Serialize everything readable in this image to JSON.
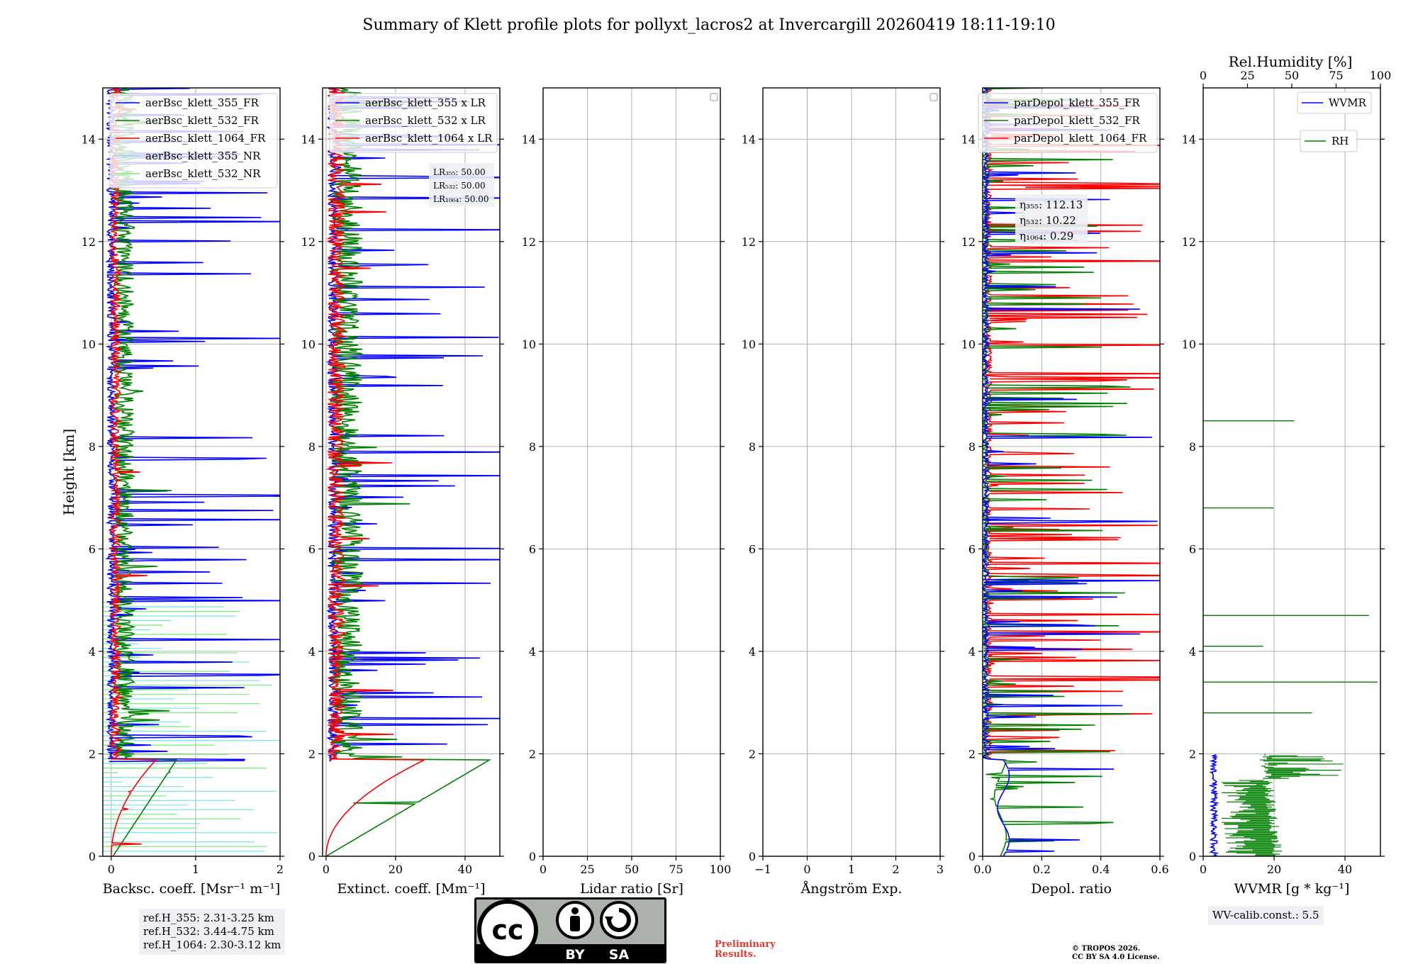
{
  "title": "Summary of Klett profile plots for pollyxt_lacros2 at Invercargill 20260419 18:11-19:10",
  "colors": {
    "c355": "#0000ff",
    "c532": "#008000",
    "c1064": "#ff0000",
    "c355nr": "#7fe6e6",
    "c532nr": "#7fee7f",
    "grid": "#b0b0b0"
  },
  "chart_data": [
    {
      "type": "line",
      "name": "backscatter",
      "xlabel": "Backsc. coeff. [Msr⁻¹ m⁻¹]",
      "ylabel": "Height [km]",
      "xlim": [
        -0.1,
        2
      ],
      "ylim": [
        0,
        15
      ],
      "xticks": [
        "0",
        "1",
        "2"
      ],
      "xtick_values": [
        0,
        1,
        2
      ],
      "yticks": [
        "0",
        "2",
        "4",
        "6",
        "8",
        "10",
        "12",
        "14"
      ],
      "legend": [
        "aerBsc_klett_355_FR",
        "aerBsc_klett_532_FR",
        "aerBsc_klett_1064_FR",
        "aerBsc_klett_355_NR",
        "aerBsc_klett_532_NR"
      ],
      "legend_position": "upper-right"
    },
    {
      "type": "line",
      "name": "extinction",
      "xlabel": "Extinct. coeff. [Mm⁻¹]",
      "xlim": [
        -1,
        50
      ],
      "ylim": [
        0,
        15
      ],
      "xticks": [
        "0",
        "20",
        "40"
      ],
      "xtick_values": [
        0,
        20,
        40
      ],
      "yticks": [
        "0",
        "2",
        "4",
        "6",
        "8",
        "10",
        "12",
        "14"
      ],
      "legend": [
        "aerBsc_klett_355 x LR",
        "aerBsc_klett_532 x LR",
        "aerBsc_klett_1064 x LR"
      ],
      "legend_position": "upper-right",
      "annotation": {
        "lines": [
          "LR₃₅₅: 50.00",
          "LR₅₃₂: 50.00",
          "LR₁₀₆₄: 50.00"
        ]
      }
    },
    {
      "type": "line",
      "name": "lidar-ratio",
      "xlabel": "Lidar ratio [Sr]",
      "xlim": [
        0,
        100
      ],
      "ylim": [
        0,
        15
      ],
      "xticks": [
        "0",
        "25",
        "50",
        "75",
        "100"
      ],
      "xtick_values": [
        0,
        25,
        50,
        75,
        100
      ],
      "yticks": [
        "0",
        "2",
        "4",
        "6",
        "8",
        "10",
        "12",
        "14"
      ],
      "legend": []
    },
    {
      "type": "line",
      "name": "angstrom",
      "xlabel": "Ångström Exp.",
      "xlim": [
        -1,
        3
      ],
      "ylim": [
        0,
        15
      ],
      "xticks": [
        "−1",
        "0",
        "1",
        "2",
        "3"
      ],
      "xtick_values": [
        -1,
        0,
        1,
        2,
        3
      ],
      "yticks": [
        "0",
        "2",
        "4",
        "6",
        "8",
        "10",
        "12",
        "14"
      ],
      "legend": []
    },
    {
      "type": "line",
      "name": "depol",
      "xlabel": "Depol. ratio",
      "xlim": [
        0,
        0.6
      ],
      "ylim": [
        0,
        15
      ],
      "xticks": [
        "0.0",
        "0.2",
        "0.4",
        "0.6"
      ],
      "xtick_values": [
        0,
        0.2,
        0.4,
        0.6
      ],
      "yticks": [
        "0",
        "2",
        "4",
        "6",
        "8",
        "10",
        "12",
        "14"
      ],
      "legend": [
        "parDepol_klett_355_FR",
        "parDepol_klett_532_FR",
        "parDepol_klett_1064_FR"
      ],
      "legend_position": "upper-right",
      "annotation": {
        "lines": [
          "η₃₅₅: 112.13",
          "η₅₃₂: 10.22",
          "η₁₀₆₄: 0.29"
        ]
      }
    },
    {
      "type": "line",
      "name": "wvmr",
      "xlabel": "WVMR [g * kg⁻¹]",
      "xlim": [
        0,
        50
      ],
      "ylim": [
        0,
        15
      ],
      "xticks": [
        "0",
        "20",
        "40"
      ],
      "xtick_values": [
        0,
        20,
        40
      ],
      "yticks": [
        "0",
        "2",
        "4",
        "6",
        "8",
        "10",
        "12",
        "14"
      ],
      "top_xlabel": "Rel.Humidity [%]",
      "top_xlim": [
        0,
        100
      ],
      "top_xticks": [
        "0",
        "25",
        "50",
        "75",
        "100"
      ],
      "top_xtick_values": [
        0,
        25,
        50,
        75,
        100
      ],
      "legend": [
        "WVMR",
        "RH"
      ],
      "legend_position": "upper-right"
    }
  ],
  "notes": {
    "refH": [
      "ref.H_355: 2.31-3.25 km",
      "ref.H_532: 3.44-4.75 km",
      "ref.H_1064: 2.30-3.12 km"
    ],
    "wv_calib": "WV-calib.const.: 5.5",
    "preliminary": [
      "Preliminary",
      "Results."
    ],
    "copyright": [
      "© TROPOS 2026.",
      "CC BY SA 4.0 License."
    ]
  },
  "license_badge": {
    "cc": "cc",
    "by": "BY",
    "sa": "SA"
  }
}
